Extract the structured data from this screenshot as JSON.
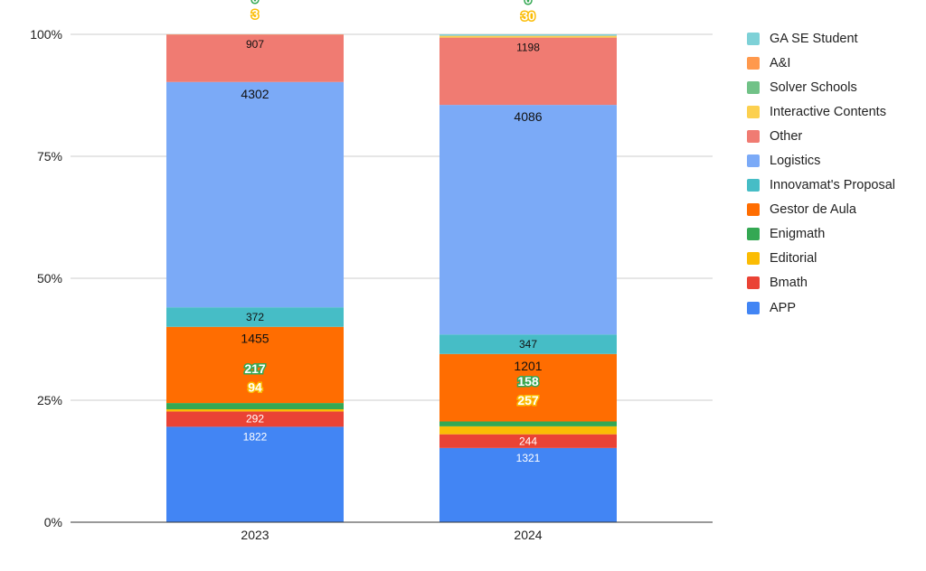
{
  "chart_data": {
    "type": "bar",
    "stacked": "percent",
    "categories": [
      "2023",
      "2024"
    ],
    "yticks": [
      "0%",
      "25%",
      "50%",
      "75%",
      "100%"
    ],
    "ylim": [
      0,
      100
    ],
    "grid": true,
    "legend_position": "right",
    "series": [
      {
        "name": "APP",
        "color": "#4285f4",
        "values": [
          1822,
          1321
        ],
        "labels": [
          "1822",
          "1321"
        ],
        "label_style": "white"
      },
      {
        "name": "Bmath",
        "color": "#ea4335",
        "values": [
          292,
          244
        ],
        "labels": [
          "292",
          "244"
        ],
        "label_style": "white-outline-red"
      },
      {
        "name": "Editorial",
        "color": "#fbbc04",
        "values": [
          42,
          141
        ],
        "labels": [
          "",
          ""
        ],
        "label_style": "none"
      },
      {
        "name": "Enigmath",
        "color": "#34a853",
        "values": [
          119,
          87
        ],
        "labels": [
          "",
          ""
        ],
        "label_style": "none"
      },
      {
        "name": "Gestor de Aula",
        "color": "#ff6d01",
        "values": [
          1455,
          1201
        ],
        "labels": [
          "1455",
          "1201"
        ],
        "label_style": "dark"
      },
      {
        "name": "Innovamat's Proposal",
        "color": "#46bdc6",
        "values": [
          372,
          347
        ],
        "labels": [
          "372",
          "347"
        ],
        "label_style": "dark-small"
      },
      {
        "name": "Logistics",
        "color": "#7baaf7",
        "values": [
          4302,
          4086
        ],
        "labels": [
          "4302",
          "4086"
        ],
        "label_style": "dark"
      },
      {
        "name": "Other",
        "color": "#f07b72",
        "values": [
          907,
          1198
        ],
        "labels": [
          "907",
          "1198"
        ],
        "label_style": "dark-small"
      },
      {
        "name": "Interactive Contents",
        "color": "#fcd04f",
        "values": [
          3,
          30
        ],
        "labels": [
          "",
          ""
        ],
        "label_style": "none"
      },
      {
        "name": "Solver Schools",
        "color": "#71c287",
        "values": [
          0,
          0
        ],
        "labels": [
          "",
          ""
        ],
        "label_style": "none"
      },
      {
        "name": "A&I",
        "color": "#ff994d",
        "values": [
          0,
          3
        ],
        "labels": [
          "",
          ""
        ],
        "label_style": "none"
      },
      {
        "name": "GA SE Student",
        "color": "#7ed1d7",
        "values": [
          0,
          25
        ],
        "labels": [
          "",
          ""
        ],
        "label_style": "none"
      }
    ],
    "floating_labels": [
      {
        "text": "217",
        "category": "2023",
        "color": "#34a853",
        "at_percent": 31.5
      },
      {
        "text": "94",
        "category": "2023",
        "color": "#fbbc04",
        "at_percent": 27.7
      },
      {
        "text": "158",
        "category": "2024",
        "color": "#34a853",
        "at_percent": 28.9
      },
      {
        "text": "257",
        "category": "2024",
        "color": "#fbbc04",
        "at_percent": 25.0
      },
      {
        "text": "3",
        "category": "2023",
        "color": "#fbbc04",
        "at_percent": 104.2
      },
      {
        "text": "30",
        "category": "2024",
        "color": "#fbbc04",
        "at_percent": 103.8
      },
      {
        "text": "0",
        "category": "2024",
        "color": "#34a853",
        "at_percent": 107.2
      },
      {
        "text": "0",
        "category": "2023",
        "color": "#34a853",
        "at_percent": 107.4
      }
    ]
  }
}
